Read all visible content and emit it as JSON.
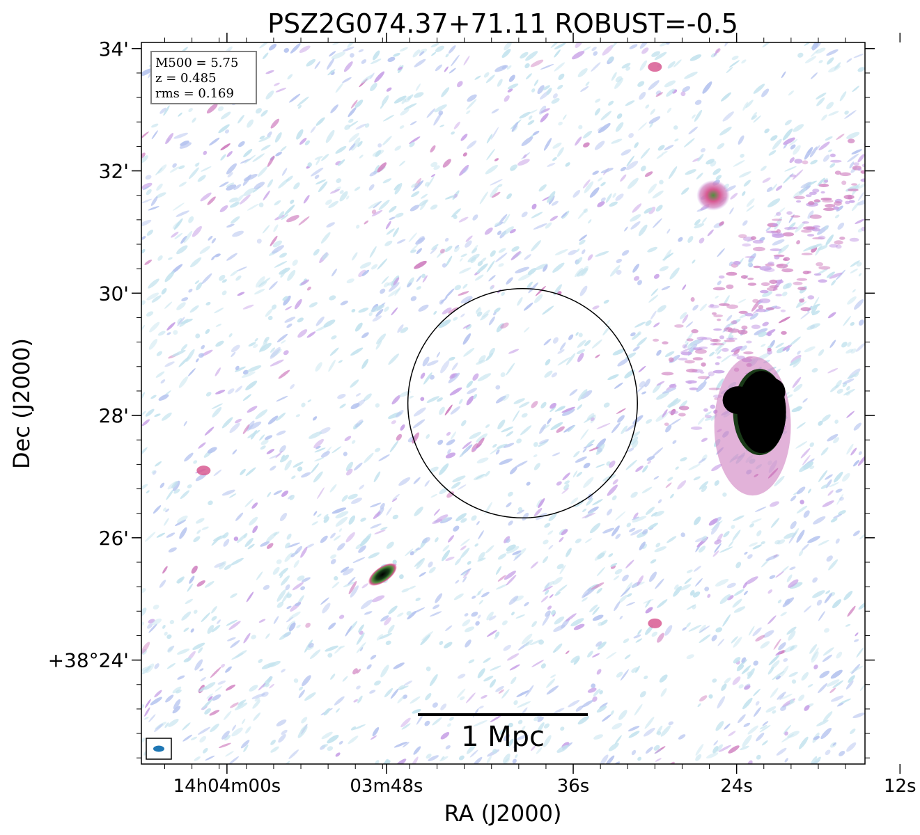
{
  "chart_data": {
    "type": "heatmap",
    "title": "PSZ2G074.37+71.11 ROBUST=-0.5",
    "xlabel": "RA (J2000)",
    "ylabel": "Dec (J2000)",
    "x_ticks": [
      "14h04m00s",
      "03m48s",
      "36s",
      "24s",
      "12s"
    ],
    "y_ticks": [
      "+38°24'",
      "26'",
      "28'",
      "30'",
      "32'",
      "34'"
    ],
    "x_range_arcmin": [
      -10.4,
      8.2
    ],
    "y_range_arcmin": [
      -1.7,
      10.1
    ],
    "x_tick_positions_arcmin": [
      -8.2,
      -4.1,
      0.7,
      4.9,
      9.1
    ],
    "y_tick_positions_arcmin": [
      0,
      2,
      4,
      6,
      8,
      10
    ],
    "info_box": [
      "M500 = 5.75",
      "z = 0.485",
      "rms = 0.169"
    ],
    "scale_bar_label": "1 Mpc",
    "circle": {
      "center_arcmin": [
        -0.6,
        4.2
      ],
      "radius_arcmin": 2.95
    },
    "sources": [
      {
        "name": "compact-source-sw",
        "x": -4.2,
        "y": 1.4,
        "strength": "strong"
      },
      {
        "name": "source-ne",
        "x": 4.3,
        "y": 7.6,
        "strength": "moderate"
      },
      {
        "name": "bright-source-east",
        "x": 5.4,
        "y": 4.0,
        "strength": "saturated"
      },
      {
        "name": "source-south",
        "x": 2.8,
        "y": 0.6,
        "strength": "weak"
      },
      {
        "name": "source-west",
        "x": -8.8,
        "y": 3.1,
        "strength": "weak"
      },
      {
        "name": "source-top",
        "x": 2.8,
        "y": 9.7,
        "strength": "weak"
      }
    ],
    "colormap": [
      "#ffffff",
      "#c4e3ee",
      "#b6c4ef",
      "#c7a0e6",
      "#cf7fbf",
      "#d85a92",
      "#4f8f3d",
      "#000000"
    ],
    "beam_color": "#1f77b4",
    "grid": false,
    "legend": "none"
  }
}
